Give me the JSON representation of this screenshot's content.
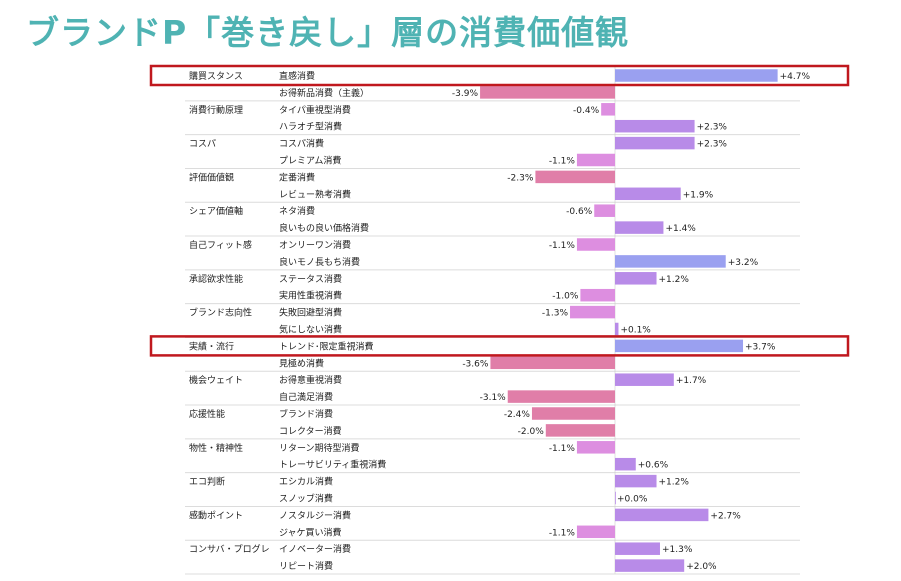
{
  "page": {
    "title": "ブランドP「巻き戻し」層の消費価値観"
  },
  "colors": {
    "title": "#4fb3b3",
    "positive": "#9aa0f0",
    "positive_alt": "#b88be8",
    "negative": "#e07ea8",
    "negative_light": "#dd8ee0",
    "highlight_box": "#c0181e",
    "separator": "#dcdcdc",
    "zero_line": "#cccccc"
  },
  "chart_data": {
    "type": "bar",
    "orientation": "horizontal",
    "grid": false,
    "legend": "none",
    "xlim": [
      -4.0,
      4.7
    ],
    "groups": [
      "購買スタンス",
      "消費行動原理",
      "コスパ",
      "評価価値観",
      "シェア価値軸",
      "自己フィット感",
      "承認欲求性能",
      "ブランド志向性",
      "実績・流行",
      "機会ウェイト",
      "応援性能",
      "物性・精神性",
      "エコ判断",
      "感動ポイント",
      "コンサバ・プログレ"
    ],
    "rows": [
      {
        "group": "購買スタンス",
        "label": "直感消費",
        "value": 4.7,
        "value_label": "+4.7%",
        "highlight": true
      },
      {
        "group": "",
        "label": "お得新品消費（主義）",
        "value": -3.9,
        "value_label": "-3.9%"
      },
      {
        "group": "消費行動原理",
        "label": "タイパ重視型消費",
        "value": -0.4,
        "value_label": "-0.4%"
      },
      {
        "group": "",
        "label": "ハラオチ型消費",
        "value": 2.3,
        "value_label": "+2.3%"
      },
      {
        "group": "コスパ",
        "label": "コスパ消費",
        "value": 2.3,
        "value_label": "+2.3%"
      },
      {
        "group": "",
        "label": "プレミアム消費",
        "value": -1.1,
        "value_label": "-1.1%"
      },
      {
        "group": "評価価値観",
        "label": "定番消費",
        "value": -2.3,
        "value_label": "-2.3%"
      },
      {
        "group": "",
        "label": "レビュー熟考消費",
        "value": 1.9,
        "value_label": "+1.9%"
      },
      {
        "group": "シェア価値軸",
        "label": "ネタ消費",
        "value": -0.6,
        "value_label": "-0.6%"
      },
      {
        "group": "",
        "label": "良いもの良い価格消費",
        "value": 1.4,
        "value_label": "+1.4%"
      },
      {
        "group": "自己フィット感",
        "label": "オンリーワン消費",
        "value": -1.1,
        "value_label": "-1.1%"
      },
      {
        "group": "",
        "label": "良いモノ長もち消費",
        "value": 3.2,
        "value_label": "+3.2%"
      },
      {
        "group": "承認欲求性能",
        "label": "ステータス消費",
        "value": 1.2,
        "value_label": "+1.2%"
      },
      {
        "group": "",
        "label": "実用性重視消費",
        "value": -1.0,
        "value_label": "-1.0%"
      },
      {
        "group": "ブランド志向性",
        "label": "失敗回避型消費",
        "value": -1.3,
        "value_label": "-1.3%"
      },
      {
        "group": "",
        "label": "気にしない消費",
        "value": 0.1,
        "value_label": "+0.1%"
      },
      {
        "group": "実績・流行",
        "label": "トレンド･限定重視消費",
        "value": 3.7,
        "value_label": "+3.7%",
        "highlight": true
      },
      {
        "group": "",
        "label": "見極め消費",
        "value": -3.6,
        "value_label": "-3.6%"
      },
      {
        "group": "機会ウェイト",
        "label": "お得意重視消費",
        "value": 1.7,
        "value_label": "+1.7%"
      },
      {
        "group": "",
        "label": "自己満足消費",
        "value": -3.1,
        "value_label": "-3.1%"
      },
      {
        "group": "応援性能",
        "label": "ブランド消費",
        "value": -2.4,
        "value_label": "-2.4%"
      },
      {
        "group": "",
        "label": "コレクター消費",
        "value": -2.0,
        "value_label": "-2.0%"
      },
      {
        "group": "物性・精神性",
        "label": "リターン期待型消費",
        "value": -1.1,
        "value_label": "-1.1%"
      },
      {
        "group": "",
        "label": "トレーサビリティ重視消費",
        "value": 0.6,
        "value_label": "+0.6%"
      },
      {
        "group": "エコ判断",
        "label": "エシカル消費",
        "value": 1.2,
        "value_label": "+1.2%"
      },
      {
        "group": "",
        "label": "スノッブ消費",
        "value": 0.0,
        "value_label": "+0.0%"
      },
      {
        "group": "感動ポイント",
        "label": "ノスタルジー消費",
        "value": 2.7,
        "value_label": "+2.7%"
      },
      {
        "group": "",
        "label": "ジャケ買い消費",
        "value": -1.1,
        "value_label": "-1.1%"
      },
      {
        "group": "コンサバ・プログレ",
        "label": "イノベーター消費",
        "value": 1.3,
        "value_label": "+1.3%"
      },
      {
        "group": "",
        "label": "リピート消費",
        "value": 2.0,
        "value_label": "+2.0%"
      }
    ]
  }
}
